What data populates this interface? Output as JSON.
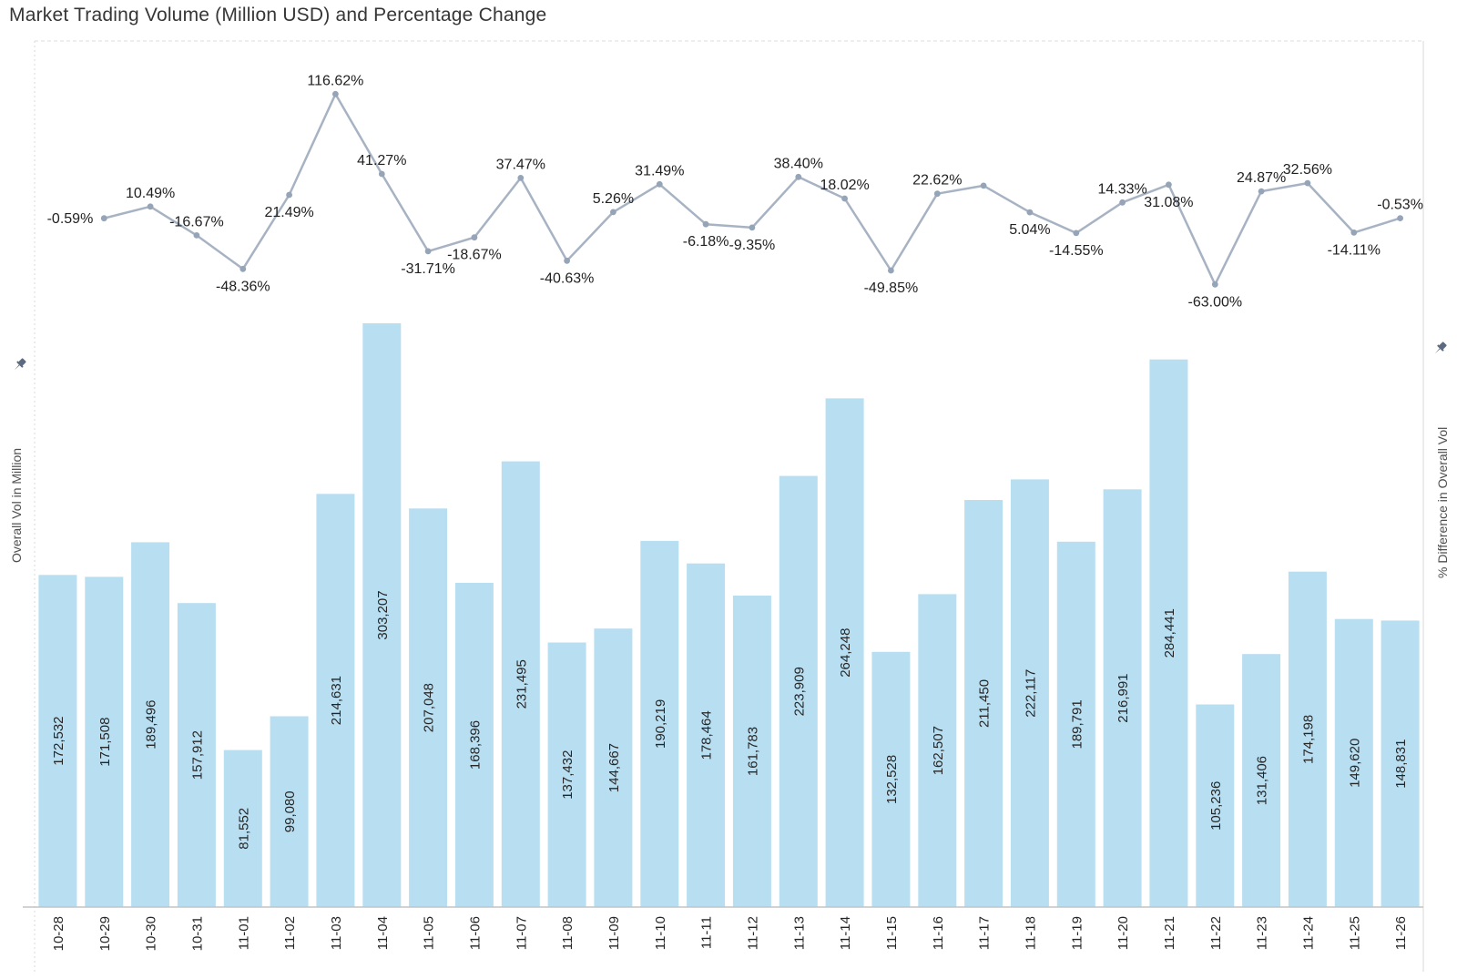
{
  "title": "Market Trading Volume (Million USD) and Percentage Change",
  "axes": {
    "left_title": "Overall Vol in Million",
    "right_title": "% Difference in Overall Vol"
  },
  "icons": {
    "left_pin": "pin-icon",
    "right_pin": "pin-icon"
  },
  "chart_data": {
    "type": "combo",
    "title": "Market Trading Volume (Million USD) and Percentage Change",
    "categories": [
      "10-28",
      "10-29",
      "10-30",
      "10-31",
      "11-01",
      "11-02",
      "11-03",
      "11-04",
      "11-05",
      "11-06",
      "11-07",
      "11-08",
      "11-09",
      "11-10",
      "11-11",
      "11-12",
      "11-13",
      "11-14",
      "11-15",
      "11-16",
      "11-17",
      "11-18",
      "11-19",
      "11-20",
      "11-21",
      "11-22",
      "11-23",
      "11-24",
      "11-25",
      "11-26"
    ],
    "series": [
      {
        "name": "Overall Vol in Million",
        "type": "bar",
        "values": [
          172532,
          171508,
          189496,
          157912,
          81552,
          99080,
          214631,
          303207,
          207048,
          168396,
          231495,
          137432,
          144667,
          190219,
          178464,
          161783,
          223909,
          264248,
          132528,
          162507,
          211450,
          222117,
          189791,
          216991,
          284441,
          105236,
          131406,
          174198,
          149620,
          148831
        ]
      },
      {
        "name": "% Difference in Overall Vol",
        "type": "line",
        "values": [
          null,
          -0.59,
          10.49,
          -16.67,
          -48.36,
          21.49,
          116.62,
          41.27,
          -31.71,
          -18.67,
          37.47,
          -40.63,
          5.26,
          31.49,
          -6.18,
          -9.35,
          38.4,
          18.02,
          -49.85,
          22.62,
          30.12,
          5.04,
          -14.55,
          14.33,
          31.08,
          -63.0,
          24.87,
          32.56,
          -14.11,
          -0.53
        ]
      }
    ],
    "line_label_positions": [
      null,
      "left",
      "above",
      "above",
      "below",
      "below",
      "above",
      "above",
      "below",
      "below",
      "above",
      "below",
      "above",
      "above",
      "below",
      "below",
      "above",
      "above",
      "below",
      "above",
      "hidden",
      "below",
      "below",
      "above",
      "below",
      "below",
      "above",
      "above",
      "below",
      "above"
    ],
    "layout": {
      "grid": false,
      "legend": false,
      "bar_value_labels": "inside-rotated-90",
      "x_tick_labels": "rotated-90",
      "left_axis_ticks_hidden": true,
      "right_axis_ticks_hidden": true
    },
    "colors": {
      "bar": "#b8def1",
      "line": "#a7b3c3",
      "marker": "#96a4b8",
      "mark_label_text": "#262626",
      "pct_label_text": "#212121",
      "axis_title_text": "#4f4f4f",
      "title_text": "#363636",
      "border": "#d9d9d9",
      "baseline": "#c4c4c4",
      "pin": "#5c6b83"
    }
  }
}
